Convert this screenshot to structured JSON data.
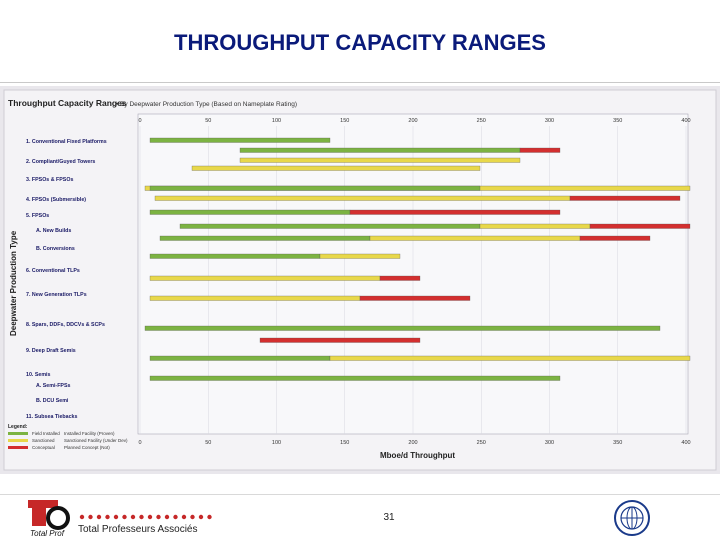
{
  "slide": {
    "title": "THROUGHPUT CAPACITY RANGES",
    "page_number": "31",
    "company": "Total Professeurs Associés",
    "logo_text": "Total Prof"
  },
  "figure": {
    "title": "Throughput Capacity Ranges",
    "subtitle": "• By Deepwater Production Type (Based on Nameplate Rating)",
    "y_axis_label": "Deepwater Production Type",
    "x_axis_label": "Mboe/d Throughput",
    "top_ticks": [
      "0",
      "50",
      "100",
      "150",
      "200",
      "250",
      "300",
      "350",
      "400"
    ],
    "bottom_ticks": [
      "0",
      "50",
      "100",
      "150",
      "200",
      "250",
      "300",
      "350",
      "400"
    ],
    "categories": [
      "1. Conventional Fixed Platforms",
      "2. Compliant/Guyed Towers",
      "3. FPSOs & FPSOs",
      "4. FPSOs (Submersible)",
      "5. FPSOs",
      "A. New Builds",
      "B. Conversions",
      "6. Conventional TLPs",
      "7. New Generation TLPs",
      "8. Spars, DDFs, DDCVs & SCPs",
      "9. Deep Draft Semis",
      "10. Semis",
      "A. Semi-FPSs",
      "B. DCU Semi",
      "11. Subsea Tiebacks"
    ],
    "legend_title": "Legend:",
    "legend": [
      "Field Installed",
      "Sanctioned",
      "Conceptual",
      "Installed Facility (Proven)",
      "Sanctioned Facility (Under Dev)",
      "Planned Concept (Not)"
    ],
    "colors": {
      "proven": "#7cb342",
      "sanctioned": "#e8d84a",
      "concept": "#d32f2f",
      "title": "#0a1a7a",
      "scan_bg": "#eae8ec"
    }
  }
}
